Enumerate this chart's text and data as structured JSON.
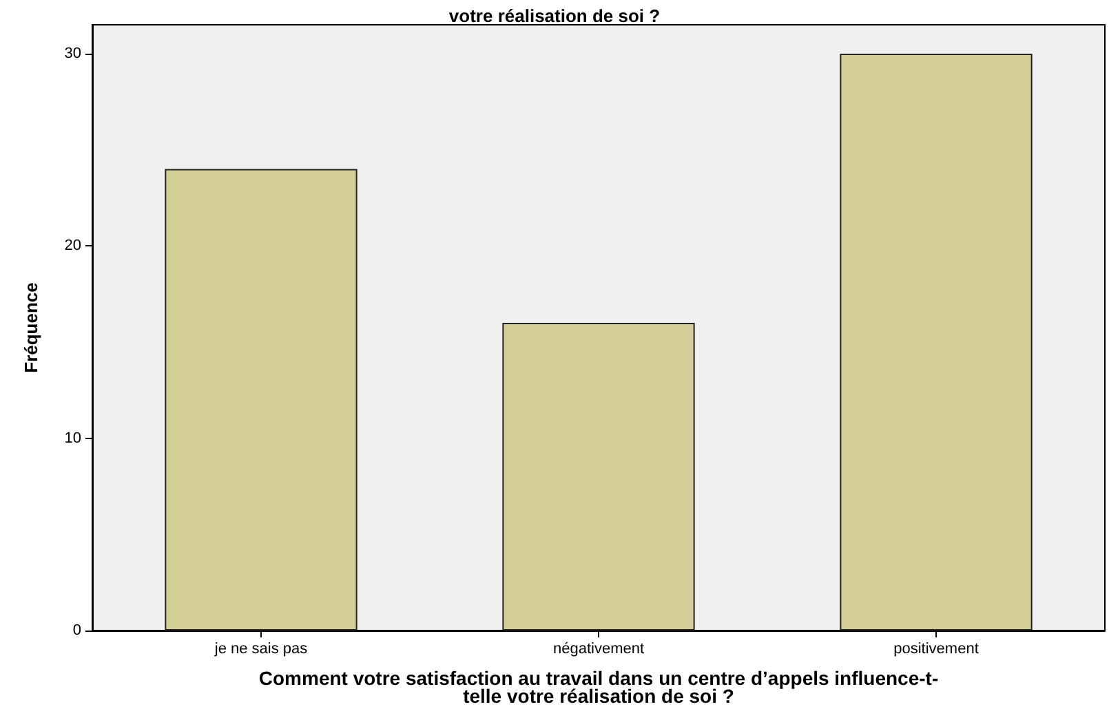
{
  "chart_data": {
    "type": "bar",
    "title": "votre réalisation de soi ?",
    "xlabel": "Comment votre satisfaction au travail dans un centre d’appels influence-t-\ntelle votre réalisation de soi ?",
    "ylabel": "Fréquence",
    "categories": [
      "je ne sais pas",
      "négativement",
      "positivement"
    ],
    "values": [
      24,
      16,
      30
    ],
    "color": "#d3cd96",
    "ylim": [
      0,
      31.5
    ],
    "yticks": [
      0,
      10,
      20,
      30
    ],
    "grid": false
  }
}
